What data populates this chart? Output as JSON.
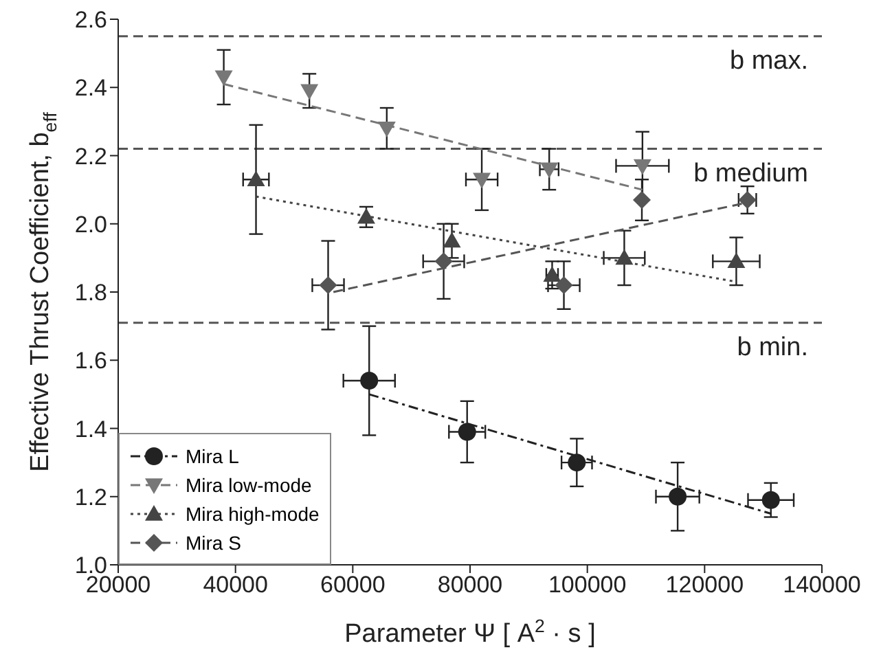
{
  "chart_data": {
    "type": "scatter",
    "xlabel": "Parameter Ψ [ A$^{2}$ · s ]",
    "ylabel": "Effective Thrust Coefficient, b$_{eff}$",
    "xlim": [
      20000,
      140000
    ],
    "xticks": [
      20000,
      40000,
      60000,
      80000,
      100000,
      120000,
      140000
    ],
    "ylim": [
      1.0,
      2.6
    ],
    "yticks": [
      {
        "value": 1.0,
        "label": "1.0"
      },
      {
        "value": 1.2,
        "label": "1.2"
      },
      {
        "value": 1.4,
        "label": "1.4"
      },
      {
        "value": 1.6,
        "label": "1.6"
      },
      {
        "value": 1.8,
        "label": "1.8"
      },
      {
        "value": 2.0,
        "label": "2.0"
      },
      {
        "value": 2.2,
        "label": "2.2"
      },
      {
        "value": 2.4,
        "label": "2.4"
      },
      {
        "value": 2.6,
        "label": "2.6"
      }
    ],
    "grid": false,
    "legend": "bottom left",
    "ref_lines": [
      {
        "axis": "y",
        "value": 2.55,
        "label": "b max.",
        "color": "#555555",
        "line_style": "dashed"
      },
      {
        "axis": "y",
        "value": 2.22,
        "label": "b medium",
        "color": "#555555",
        "line_style": "dashed"
      },
      {
        "axis": "y",
        "value": 1.71,
        "label": "b min.",
        "color": "#555555",
        "line_style": "dashed"
      }
    ],
    "series": [
      {
        "name": "Mira L",
        "color": "#222222",
        "marker": "circle",
        "line_style": "dashdot",
        "x": [
          62800,
          79500,
          98200,
          115400,
          131300
        ],
        "values": [
          1.54,
          1.39,
          1.3,
          1.2,
          1.19
        ],
        "errors": [
          0.16,
          0.09,
          0.07,
          0.1,
          0.05
        ],
        "xerrors": [
          4400,
          3100,
          2600,
          3700,
          3900
        ]
      },
      {
        "name": "Mira low-mode",
        "color": "#777777",
        "marker": "triangle-down",
        "line_style": "dashed",
        "x": [
          38000,
          52600,
          65800,
          82000,
          93500,
          109400
        ],
        "values": [
          2.43,
          2.39,
          2.28,
          2.13,
          2.16,
          2.17
        ],
        "errors": [
          0.08,
          0.05,
          0.06,
          0.09,
          0.06,
          0.1
        ],
        "xerrors": [
          null,
          null,
          null,
          2700,
          1600,
          4500
        ]
      },
      {
        "name": "Mira high-mode",
        "color": "#444444",
        "marker": "triangle",
        "line_style": "dotted",
        "x": [
          43500,
          62300,
          76900,
          94000,
          106300,
          125400
        ],
        "values": [
          2.13,
          2.02,
          1.95,
          1.85,
          1.9,
          1.89
        ],
        "errors": [
          0.16,
          0.03,
          0.05,
          0.04,
          0.08,
          0.07
        ],
        "xerrors": [
          2200,
          null,
          null,
          1000,
          3500,
          4000
        ]
      },
      {
        "name": "Mira S",
        "color": "#555555",
        "marker": "diamond",
        "line_style": "dashed",
        "x": [
          55800,
          75500,
          96000,
          109300,
          127300
        ],
        "values": [
          1.82,
          1.89,
          1.82,
          2.07,
          2.07
        ],
        "errors": [
          0.13,
          0.11,
          0.07,
          0.06,
          0.04
        ],
        "xerrors": [
          2700,
          3500,
          2700,
          null,
          1500
        ]
      },
      {
        "type": "line",
        "color": "#222222",
        "line_style": "dashdot",
        "marker": "none",
        "x": [
          62800,
          131300
        ],
        "values": [
          1.5,
          1.15
        ]
      },
      {
        "type": "line",
        "color": "#777777",
        "line_style": "dashed",
        "marker": "none",
        "x": [
          38000,
          109400
        ],
        "values": [
          2.41,
          2.1
        ]
      },
      {
        "type": "line",
        "color": "#444444",
        "line_style": "dotted",
        "marker": "none",
        "x": [
          43500,
          125400
        ],
        "values": [
          2.08,
          1.83
        ]
      },
      {
        "type": "line",
        "color": "#555555",
        "line_style": "dashed",
        "marker": "none",
        "x": [
          56700,
          126600
        ],
        "values": [
          1.8,
          2.06
        ]
      }
    ]
  }
}
